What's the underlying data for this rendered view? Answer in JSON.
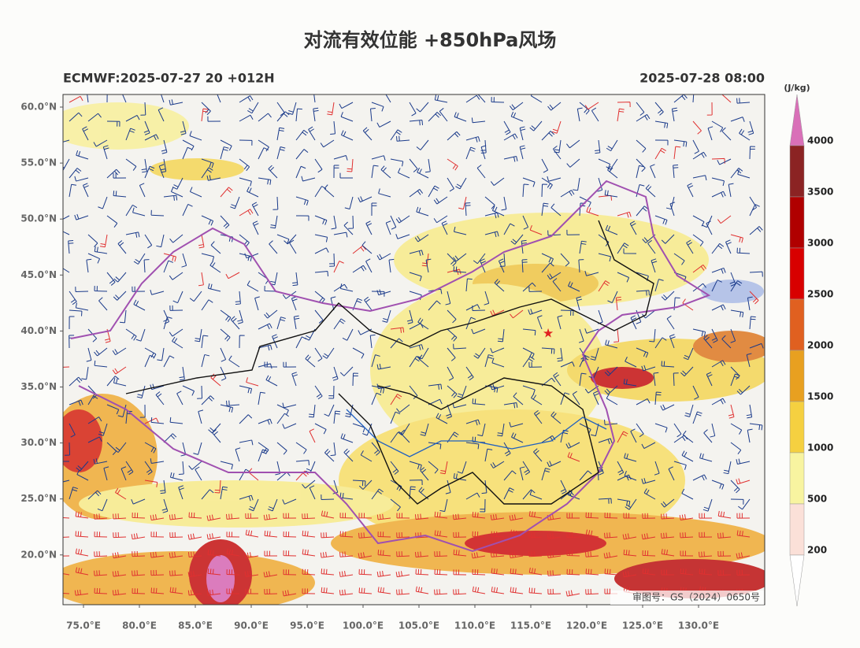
{
  "header": {
    "title": "对流有效位能 +850hPa风场",
    "left": "ECMWF:2025-07-27 20 +012H",
    "right": "2025-07-28 08:00"
  },
  "map": {
    "lat_labels": [
      "60.0°N",
      "55.0°N",
      "50.0°N",
      "45.0°N",
      "40.0°N",
      "35.0°N",
      "30.0°N",
      "25.0°N",
      "20.0°N"
    ],
    "lon_labels": [
      "75.0°E",
      "80.0°E",
      "85.0°E",
      "90.0°E",
      "95.0°E",
      "100.0°E",
      "105.0°E",
      "110.0°E",
      "115.0°E",
      "120.0°E",
      "125.0°E",
      "130.0°E"
    ],
    "approval": "审图号：GS（2024）0650号"
  },
  "colorbar": {
    "unit": "(J/kg)",
    "levels": [
      4000,
      3500,
      3000,
      2500,
      2000,
      1500,
      1000,
      500,
      200
    ],
    "colors": [
      "#d970b8",
      "#8b2323",
      "#b00000",
      "#d80000",
      "#e06020",
      "#e8a020",
      "#f5d040",
      "#f8f4a0",
      "#fbe0d8",
      "#ffffff"
    ]
  }
}
